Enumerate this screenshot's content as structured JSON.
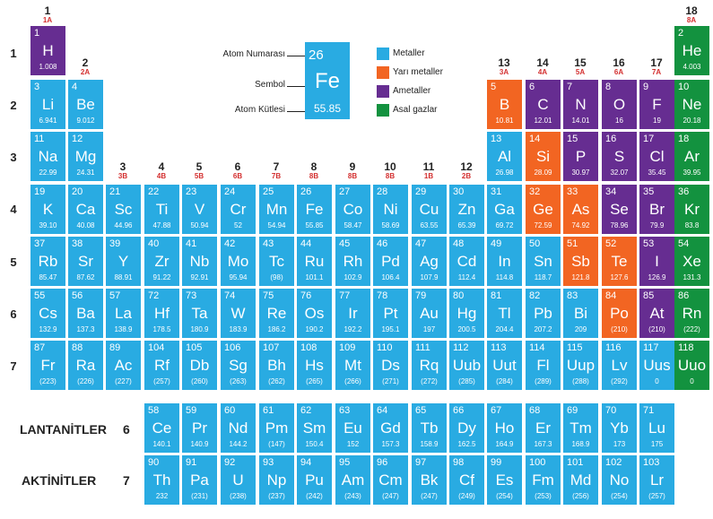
{
  "colors": {
    "metal": "#29abe2",
    "metalloid": "#f26522",
    "nonmetal": "#662d91",
    "noble": "#13923f"
  },
  "legend": [
    {
      "label": "Metaller",
      "color": "#29abe2"
    },
    {
      "label": "Yarı metaller",
      "color": "#f26522"
    },
    {
      "label": "Ametaller",
      "color": "#662d91"
    },
    {
      "label": "Asal gazlar",
      "color": "#13923f"
    }
  ],
  "key": {
    "atomic_number_label": "Atom Numarası",
    "symbol_label": "Sembol",
    "mass_label": "Atom Kütlesi",
    "num": "26",
    "sym": "Fe",
    "mass": "55.85"
  },
  "periods": [
    "1",
    "2",
    "3",
    "4",
    "5",
    "6",
    "7"
  ],
  "series": {
    "lanthanides_label": "LANTANİTLER",
    "lanthanides_period": "6",
    "actinides_label": "AKTİNİTLER",
    "actinides_period": "7"
  },
  "groups": [
    {
      "n": "1",
      "s": "1A"
    },
    {
      "n": "2",
      "s": "2A"
    },
    {
      "n": "3",
      "s": "3B"
    },
    {
      "n": "4",
      "s": "4B"
    },
    {
      "n": "5",
      "s": "5B"
    },
    {
      "n": "6",
      "s": "6B"
    },
    {
      "n": "7",
      "s": "7B"
    },
    {
      "n": "8",
      "s": "8B"
    },
    {
      "n": "9",
      "s": "8B"
    },
    {
      "n": "10",
      "s": "8B"
    },
    {
      "n": "11",
      "s": "1B"
    },
    {
      "n": "12",
      "s": "2B"
    },
    {
      "n": "13",
      "s": "3A"
    },
    {
      "n": "14",
      "s": "4A"
    },
    {
      "n": "15",
      "s": "5A"
    },
    {
      "n": "16",
      "s": "6A"
    },
    {
      "n": "17",
      "s": "7A"
    },
    {
      "n": "18",
      "s": "8A"
    }
  ],
  "elements": [
    {
      "num": "1",
      "sym": "H",
      "mass": "1.008",
      "cat": "nonmetal",
      "row": 1,
      "col": 1
    },
    {
      "num": "2",
      "sym": "He",
      "mass": "4.003",
      "cat": "noble",
      "row": 1,
      "col": 18
    },
    {
      "num": "3",
      "sym": "Li",
      "mass": "6.941",
      "cat": "metal",
      "row": 2,
      "col": 1
    },
    {
      "num": "4",
      "sym": "Be",
      "mass": "9.012",
      "cat": "metal",
      "row": 2,
      "col": 2
    },
    {
      "num": "5",
      "sym": "B",
      "mass": "10.81",
      "cat": "metalloid",
      "row": 2,
      "col": 13
    },
    {
      "num": "6",
      "sym": "C",
      "mass": "12.01",
      "cat": "nonmetal",
      "row": 2,
      "col": 14
    },
    {
      "num": "7",
      "sym": "N",
      "mass": "14.01",
      "cat": "nonmetal",
      "row": 2,
      "col": 15
    },
    {
      "num": "8",
      "sym": "O",
      "mass": "16",
      "cat": "nonmetal",
      "row": 2,
      "col": 16
    },
    {
      "num": "9",
      "sym": "F",
      "mass": "19",
      "cat": "nonmetal",
      "row": 2,
      "col": 17
    },
    {
      "num": "10",
      "sym": "Ne",
      "mass": "20.18",
      "cat": "noble",
      "row": 2,
      "col": 18
    },
    {
      "num": "11",
      "sym": "Na",
      "mass": "22.99",
      "cat": "metal",
      "row": 3,
      "col": 1
    },
    {
      "num": "12",
      "sym": "Mg",
      "mass": "24.31",
      "cat": "metal",
      "row": 3,
      "col": 2
    },
    {
      "num": "13",
      "sym": "Al",
      "mass": "26.98",
      "cat": "metal",
      "row": 3,
      "col": 13
    },
    {
      "num": "14",
      "sym": "Si",
      "mass": "28.09",
      "cat": "metalloid",
      "row": 3,
      "col": 14
    },
    {
      "num": "15",
      "sym": "P",
      "mass": "30.97",
      "cat": "nonmetal",
      "row": 3,
      "col": 15
    },
    {
      "num": "16",
      "sym": "S",
      "mass": "32.07",
      "cat": "nonmetal",
      "row": 3,
      "col": 16
    },
    {
      "num": "17",
      "sym": "Cl",
      "mass": "35.45",
      "cat": "nonmetal",
      "row": 3,
      "col": 17
    },
    {
      "num": "18",
      "sym": "Ar",
      "mass": "39.95",
      "cat": "noble",
      "row": 3,
      "col": 18
    },
    {
      "num": "19",
      "sym": "K",
      "mass": "39.10",
      "cat": "metal",
      "row": 4,
      "col": 1
    },
    {
      "num": "20",
      "sym": "Ca",
      "mass": "40.08",
      "cat": "metal",
      "row": 4,
      "col": 2
    },
    {
      "num": "21",
      "sym": "Sc",
      "mass": "44.96",
      "cat": "metal",
      "row": 4,
      "col": 3
    },
    {
      "num": "22",
      "sym": "Ti",
      "mass": "47.88",
      "cat": "metal",
      "row": 4,
      "col": 4
    },
    {
      "num": "23",
      "sym": "V",
      "mass": "50.94",
      "cat": "metal",
      "row": 4,
      "col": 5
    },
    {
      "num": "24",
      "sym": "Cr",
      "mass": "52",
      "cat": "metal",
      "row": 4,
      "col": 6
    },
    {
      "num": "25",
      "sym": "Mn",
      "mass": "54.94",
      "cat": "metal",
      "row": 4,
      "col": 7
    },
    {
      "num": "26",
      "sym": "Fe",
      "mass": "55.85",
      "cat": "metal",
      "row": 4,
      "col": 8
    },
    {
      "num": "27",
      "sym": "Co",
      "mass": "58.47",
      "cat": "metal",
      "row": 4,
      "col": 9
    },
    {
      "num": "28",
      "sym": "Ni",
      "mass": "58.69",
      "cat": "metal",
      "row": 4,
      "col": 10
    },
    {
      "num": "29",
      "sym": "Cu",
      "mass": "63.55",
      "cat": "metal",
      "row": 4,
      "col": 11
    },
    {
      "num": "30",
      "sym": "Zn",
      "mass": "65.39",
      "cat": "metal",
      "row": 4,
      "col": 12
    },
    {
      "num": "31",
      "sym": "Ga",
      "mass": "69.72",
      "cat": "metal",
      "row": 4,
      "col": 13
    },
    {
      "num": "32",
      "sym": "Ge",
      "mass": "72.59",
      "cat": "metalloid",
      "row": 4,
      "col": 14
    },
    {
      "num": "33",
      "sym": "As",
      "mass": "74.92",
      "cat": "metalloid",
      "row": 4,
      "col": 15
    },
    {
      "num": "34",
      "sym": "Se",
      "mass": "78.96",
      "cat": "nonmetal",
      "row": 4,
      "col": 16
    },
    {
      "num": "35",
      "sym": "Br",
      "mass": "79.9",
      "cat": "nonmetal",
      "row": 4,
      "col": 17
    },
    {
      "num": "36",
      "sym": "Kr",
      "mass": "83.8",
      "cat": "noble",
      "row": 4,
      "col": 18
    },
    {
      "num": "37",
      "sym": "Rb",
      "mass": "85.47",
      "cat": "metal",
      "row": 5,
      "col": 1
    },
    {
      "num": "38",
      "sym": "Sr",
      "mass": "87.62",
      "cat": "metal",
      "row": 5,
      "col": 2
    },
    {
      "num": "39",
      "sym": "Y",
      "mass": "88.91",
      "cat": "metal",
      "row": 5,
      "col": 3
    },
    {
      "num": "40",
      "sym": "Zr",
      "mass": "91.22",
      "cat": "metal",
      "row": 5,
      "col": 4
    },
    {
      "num": "41",
      "sym": "Nb",
      "mass": "92.91",
      "cat": "metal",
      "row": 5,
      "col": 5
    },
    {
      "num": "42",
      "sym": "Mo",
      "mass": "95.94",
      "cat": "metal",
      "row": 5,
      "col": 6
    },
    {
      "num": "43",
      "sym": "Tc",
      "mass": "(98)",
      "cat": "metal",
      "row": 5,
      "col": 7
    },
    {
      "num": "44",
      "sym": "Ru",
      "mass": "101.1",
      "cat": "metal",
      "row": 5,
      "col": 8
    },
    {
      "num": "45",
      "sym": "Rh",
      "mass": "102.9",
      "cat": "metal",
      "row": 5,
      "col": 9
    },
    {
      "num": "46",
      "sym": "Pd",
      "mass": "106.4",
      "cat": "metal",
      "row": 5,
      "col": 10
    },
    {
      "num": "47",
      "sym": "Ag",
      "mass": "107.9",
      "cat": "metal",
      "row": 5,
      "col": 11
    },
    {
      "num": "48",
      "sym": "Cd",
      "mass": "112.4",
      "cat": "metal",
      "row": 5,
      "col": 12
    },
    {
      "num": "49",
      "sym": "In",
      "mass": "114.8",
      "cat": "metal",
      "row": 5,
      "col": 13
    },
    {
      "num": "50",
      "sym": "Sn",
      "mass": "118.7",
      "cat": "metal",
      "row": 5,
      "col": 14
    },
    {
      "num": "51",
      "sym": "Sb",
      "mass": "121.8",
      "cat": "metalloid",
      "row": 5,
      "col": 15
    },
    {
      "num": "52",
      "sym": "Te",
      "mass": "127.6",
      "cat": "metalloid",
      "row": 5,
      "col": 16
    },
    {
      "num": "53",
      "sym": "I",
      "mass": "126.9",
      "cat": "nonmetal",
      "row": 5,
      "col": 17
    },
    {
      "num": "54",
      "sym": "Xe",
      "mass": "131.3",
      "cat": "noble",
      "row": 5,
      "col": 18
    },
    {
      "num": "55",
      "sym": "Cs",
      "mass": "132.9",
      "cat": "metal",
      "row": 6,
      "col": 1
    },
    {
      "num": "56",
      "sym": "Ba",
      "mass": "137.3",
      "cat": "metal",
      "row": 6,
      "col": 2
    },
    {
      "num": "57",
      "sym": "La",
      "mass": "138.9",
      "cat": "metal",
      "row": 6,
      "col": 3
    },
    {
      "num": "72",
      "sym": "Hf",
      "mass": "178.5",
      "cat": "metal",
      "row": 6,
      "col": 4
    },
    {
      "num": "73",
      "sym": "Ta",
      "mass": "180.9",
      "cat": "metal",
      "row": 6,
      "col": 5
    },
    {
      "num": "74",
      "sym": "W",
      "mass": "183.9",
      "cat": "metal",
      "row": 6,
      "col": 6
    },
    {
      "num": "75",
      "sym": "Re",
      "mass": "186.2",
      "cat": "metal",
      "row": 6,
      "col": 7
    },
    {
      "num": "76",
      "sym": "Os",
      "mass": "190.2",
      "cat": "metal",
      "row": 6,
      "col": 8
    },
    {
      "num": "77",
      "sym": "Ir",
      "mass": "192.2",
      "cat": "metal",
      "row": 6,
      "col": 9
    },
    {
      "num": "78",
      "sym": "Pt",
      "mass": "195.1",
      "cat": "metal",
      "row": 6,
      "col": 10
    },
    {
      "num": "79",
      "sym": "Au",
      "mass": "197",
      "cat": "metal",
      "row": 6,
      "col": 11
    },
    {
      "num": "80",
      "sym": "Hg",
      "mass": "200.5",
      "cat": "metal",
      "row": 6,
      "col": 12
    },
    {
      "num": "81",
      "sym": "Tl",
      "mass": "204.4",
      "cat": "metal",
      "row": 6,
      "col": 13
    },
    {
      "num": "82",
      "sym": "Pb",
      "mass": "207.2",
      "cat": "metal",
      "row": 6,
      "col": 14
    },
    {
      "num": "83",
      "sym": "Bi",
      "mass": "209",
      "cat": "metal",
      "row": 6,
      "col": 15
    },
    {
      "num": "84",
      "sym": "Po",
      "mass": "(210)",
      "cat": "metalloid",
      "row": 6,
      "col": 16
    },
    {
      "num": "85",
      "sym": "At",
      "mass": "(210)",
      "cat": "nonmetal",
      "row": 6,
      "col": 17
    },
    {
      "num": "86",
      "sym": "Rn",
      "mass": "(222)",
      "cat": "noble",
      "row": 6,
      "col": 18
    },
    {
      "num": "87",
      "sym": "Fr",
      "mass": "(223)",
      "cat": "metal",
      "row": 7,
      "col": 1
    },
    {
      "num": "88",
      "sym": "Ra",
      "mass": "(226)",
      "cat": "metal",
      "row": 7,
      "col": 2
    },
    {
      "num": "89",
      "sym": "Ac",
      "mass": "(227)",
      "cat": "metal",
      "row": 7,
      "col": 3
    },
    {
      "num": "104",
      "sym": "Rf",
      "mass": "(257)",
      "cat": "metal",
      "row": 7,
      "col": 4
    },
    {
      "num": "105",
      "sym": "Db",
      "mass": "(260)",
      "cat": "metal",
      "row": 7,
      "col": 5
    },
    {
      "num": "106",
      "sym": "Sg",
      "mass": "(263)",
      "cat": "metal",
      "row": 7,
      "col": 6
    },
    {
      "num": "107",
      "sym": "Bh",
      "mass": "(262)",
      "cat": "metal",
      "row": 7,
      "col": 7
    },
    {
      "num": "108",
      "sym": "Hs",
      "mass": "(265)",
      "cat": "metal",
      "row": 7,
      "col": 8
    },
    {
      "num": "109",
      "sym": "Mt",
      "mass": "(266)",
      "cat": "metal",
      "row": 7,
      "col": 9
    },
    {
      "num": "110",
      "sym": "Ds",
      "mass": "(271)",
      "cat": "metal",
      "row": 7,
      "col": 10
    },
    {
      "num": "111",
      "sym": "Rq",
      "mass": "(272)",
      "cat": "metal",
      "row": 7,
      "col": 11
    },
    {
      "num": "112",
      "sym": "Uub",
      "mass": "(285)",
      "cat": "metal",
      "row": 7,
      "col": 12
    },
    {
      "num": "113",
      "sym": "Uut",
      "mass": "(284)",
      "cat": "metal",
      "row": 7,
      "col": 13
    },
    {
      "num": "114",
      "sym": "Fl",
      "mass": "(289)",
      "cat": "metal",
      "row": 7,
      "col": 14
    },
    {
      "num": "115",
      "sym": "Uup",
      "mass": "(288)",
      "cat": "metal",
      "row": 7,
      "col": 15
    },
    {
      "num": "116",
      "sym": "Lv",
      "mass": "(292)",
      "cat": "metal",
      "row": 7,
      "col": 16
    },
    {
      "num": "117",
      "sym": "Uus",
      "mass": "0",
      "cat": "metal",
      "row": 7,
      "col": 17
    },
    {
      "num": "118",
      "sym": "Uuo",
      "mass": "0",
      "cat": "noble",
      "row": 7,
      "col": 18
    },
    {
      "num": "58",
      "sym": "Ce",
      "mass": "140.1",
      "cat": "metal",
      "row": 8,
      "col": 4
    },
    {
      "num": "59",
      "sym": "Pr",
      "mass": "140.9",
      "cat": "metal",
      "row": 8,
      "col": 5
    },
    {
      "num": "60",
      "sym": "Nd",
      "mass": "144.2",
      "cat": "metal",
      "row": 8,
      "col": 6
    },
    {
      "num": "61",
      "sym": "Pm",
      "mass": "(147)",
      "cat": "metal",
      "row": 8,
      "col": 7
    },
    {
      "num": "62",
      "sym": "Sm",
      "mass": "150.4",
      "cat": "metal",
      "row": 8,
      "col": 8
    },
    {
      "num": "63",
      "sym": "Eu",
      "mass": "152",
      "cat": "metal",
      "row": 8,
      "col": 9
    },
    {
      "num": "64",
      "sym": "Gd",
      "mass": "157.3",
      "cat": "metal",
      "row": 8,
      "col": 10
    },
    {
      "num": "65",
      "sym": "Tb",
      "mass": "158.9",
      "cat": "metal",
      "row": 8,
      "col": 11
    },
    {
      "num": "66",
      "sym": "Dy",
      "mass": "162.5",
      "cat": "metal",
      "row": 8,
      "col": 12
    },
    {
      "num": "67",
      "sym": "Ho",
      "mass": "164.9",
      "cat": "metal",
      "row": 8,
      "col": 13
    },
    {
      "num": "68",
      "sym": "Er",
      "mass": "167.3",
      "cat": "metal",
      "row": 8,
      "col": 14
    },
    {
      "num": "69",
      "sym": "Tm",
      "mass": "168.9",
      "cat": "metal",
      "row": 8,
      "col": 15
    },
    {
      "num": "70",
      "sym": "Yb",
      "mass": "173",
      "cat": "metal",
      "row": 8,
      "col": 16
    },
    {
      "num": "71",
      "sym": "Lu",
      "mass": "175",
      "cat": "metal",
      "row": 8,
      "col": 17
    },
    {
      "num": "90",
      "sym": "Th",
      "mass": "232",
      "cat": "metal",
      "row": 9,
      "col": 4
    },
    {
      "num": "91",
      "sym": "Pa",
      "mass": "(231)",
      "cat": "metal",
      "row": 9,
      "col": 5
    },
    {
      "num": "92",
      "sym": "U",
      "mass": "(238)",
      "cat": "metal",
      "row": 9,
      "col": 6
    },
    {
      "num": "93",
      "sym": "Np",
      "mass": "(237)",
      "cat": "metal",
      "row": 9,
      "col": 7
    },
    {
      "num": "94",
      "sym": "Pu",
      "mass": "(242)",
      "cat": "metal",
      "row": 9,
      "col": 8
    },
    {
      "num": "95",
      "sym": "Am",
      "mass": "(243)",
      "cat": "metal",
      "row": 9,
      "col": 9
    },
    {
      "num": "96",
      "sym": "Cm",
      "mass": "(247)",
      "cat": "metal",
      "row": 9,
      "col": 10
    },
    {
      "num": "97",
      "sym": "Bk",
      "mass": "(247)",
      "cat": "metal",
      "row": 9,
      "col": 11
    },
    {
      "num": "98",
      "sym": "Cf",
      "mass": "(249)",
      "cat": "metal",
      "row": 9,
      "col": 12
    },
    {
      "num": "99",
      "sym": "Es",
      "mass": "(254)",
      "cat": "metal",
      "row": 9,
      "col": 13
    },
    {
      "num": "100",
      "sym": "Fm",
      "mass": "(253)",
      "cat": "metal",
      "row": 9,
      "col": 14
    },
    {
      "num": "101",
      "sym": "Md",
      "mass": "(256)",
      "cat": "metal",
      "row": 9,
      "col": 15
    },
    {
      "num": "102",
      "sym": "No",
      "mass": "(254)",
      "cat": "metal",
      "row": 9,
      "col": 16
    },
    {
      "num": "103",
      "sym": "Lr",
      "mass": "(257)",
      "cat": "metal",
      "row": 9,
      "col": 17
    }
  ]
}
